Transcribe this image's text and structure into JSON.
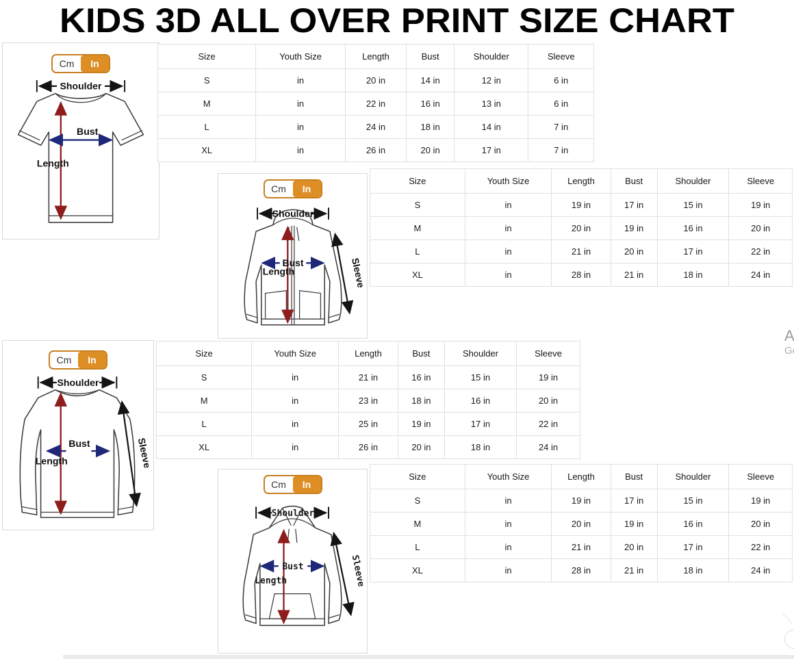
{
  "title": "KIDS 3D ALL OVER PRINT SIZE CHART",
  "unit_toggle": {
    "cm_label": "Cm",
    "in_label": "In",
    "selected": "In"
  },
  "diagram_labels": {
    "shoulder": "Shoulder",
    "bust": "Bust",
    "length": "Length",
    "sleeve": "Sleeve"
  },
  "tables": [
    {
      "garment": "t-shirt",
      "columns": [
        "Size",
        "Youth Size",
        "Length",
        "Bust",
        "Shoulder",
        "Sleeve"
      ],
      "rows": [
        [
          "S",
          "in",
          "20 in",
          "14 in",
          "12 in",
          "6 in"
        ],
        [
          "M",
          "in",
          "22 in",
          "16 in",
          "13 in",
          "6 in"
        ],
        [
          "L",
          "in",
          "24 in",
          "18 in",
          "14 in",
          "7 in"
        ],
        [
          "XL",
          "in",
          "26 in",
          "20 in",
          "17 in",
          "7 in"
        ]
      ]
    },
    {
      "garment": "zip-hoodie",
      "columns": [
        "Size",
        "Youth Size",
        "Length",
        "Bust",
        "Shoulder",
        "Sleeve"
      ],
      "rows": [
        [
          "S",
          "in",
          "19 in",
          "17 in",
          "15 in",
          "19 in"
        ],
        [
          "M",
          "in",
          "20 in",
          "19 in",
          "16 in",
          "20 in"
        ],
        [
          "L",
          "in",
          "21 in",
          "20 in",
          "17 in",
          "22 in"
        ],
        [
          "XL",
          "in",
          "28 in",
          "21 in",
          "18 in",
          "24 in"
        ]
      ]
    },
    {
      "garment": "long-sleeve-shirt",
      "columns": [
        "Size",
        "Youth Size",
        "Length",
        "Bust",
        "Shoulder",
        "Sleeve"
      ],
      "rows": [
        [
          "S",
          "in",
          "21 in",
          "16 in",
          "15 in",
          "19 in"
        ],
        [
          "M",
          "in",
          "23 in",
          "18 in",
          "16 in",
          "20 in"
        ],
        [
          "L",
          "in",
          "25 in",
          "19 in",
          "17 in",
          "22 in"
        ],
        [
          "XL",
          "in",
          "26 in",
          "20 in",
          "18 in",
          "24 in"
        ]
      ]
    },
    {
      "garment": "hoodie",
      "columns": [
        "Size",
        "Youth Size",
        "Length",
        "Bust",
        "Shoulder",
        "Sleeve"
      ],
      "rows": [
        [
          "S",
          "in",
          "19 in",
          "17 in",
          "15 in",
          "19 in"
        ],
        [
          "M",
          "in",
          "20 in",
          "19 in",
          "16 in",
          "20 in"
        ],
        [
          "L",
          "in",
          "21 in",
          "20 in",
          "17 in",
          "22 in"
        ],
        [
          "XL",
          "in",
          "28 in",
          "21 in",
          "18 in",
          "24 in"
        ]
      ]
    }
  ],
  "edge_text": {
    "line1": "A",
    "line2": "Go"
  },
  "colors": {
    "accent_orange": "#dd8e24",
    "toggle_border": "#c87f1f",
    "length_arrow": "#8e1d1d",
    "bust_arrow": "#1f2878",
    "shoulder_arrow": "#141414",
    "table_border": "#e0e0e0"
  }
}
